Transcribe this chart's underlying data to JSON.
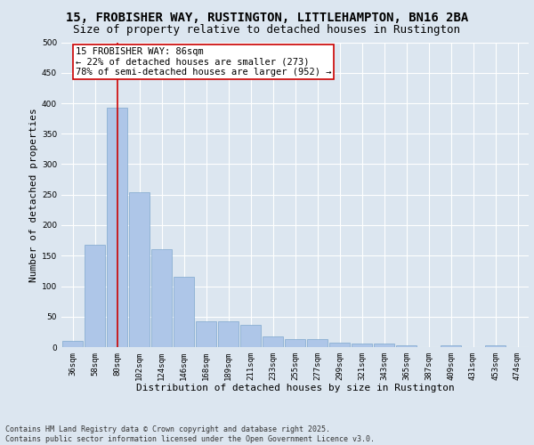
{
  "title_line1": "15, FROBISHER WAY, RUSTINGTON, LITTLEHAMPTON, BN16 2BA",
  "title_line2": "Size of property relative to detached houses in Rustington",
  "xlabel": "Distribution of detached houses by size in Rustington",
  "ylabel": "Number of detached properties",
  "categories": [
    "36sqm",
    "58sqm",
    "80sqm",
    "102sqm",
    "124sqm",
    "146sqm",
    "168sqm",
    "189sqm",
    "211sqm",
    "233sqm",
    "255sqm",
    "277sqm",
    "299sqm",
    "321sqm",
    "343sqm",
    "365sqm",
    "387sqm",
    "409sqm",
    "431sqm",
    "453sqm",
    "474sqm"
  ],
  "values": [
    10,
    168,
    393,
    254,
    160,
    115,
    43,
    43,
    37,
    18,
    13,
    13,
    8,
    6,
    6,
    3,
    0,
    3,
    0,
    3,
    0
  ],
  "bar_color": "#aec6e8",
  "bar_edge_color": "#7fa8ce",
  "bar_linewidth": 0.5,
  "vline_x_index": 2,
  "vline_color": "#cc0000",
  "annotation_line1": "15 FROBISHER WAY: 86sqm",
  "annotation_line2": "← 22% of detached houses are smaller (273)",
  "annotation_line3": "78% of semi-detached houses are larger (952) →",
  "annotation_box_color": "#ffffff",
  "annotation_box_edge": "#cc0000",
  "background_color": "#dce6f0",
  "plot_bg_color": "#dce6f0",
  "footer_text": "Contains HM Land Registry data © Crown copyright and database right 2025.\nContains public sector information licensed under the Open Government Licence v3.0.",
  "ylim": [
    0,
    500
  ],
  "yticks": [
    0,
    50,
    100,
    150,
    200,
    250,
    300,
    350,
    400,
    450,
    500
  ],
  "grid_color": "#ffffff",
  "title_fontsize": 10,
  "subtitle_fontsize": 9,
  "axis_label_fontsize": 8,
  "tick_fontsize": 6.5,
  "annotation_fontsize": 7.5,
  "footer_fontsize": 6
}
